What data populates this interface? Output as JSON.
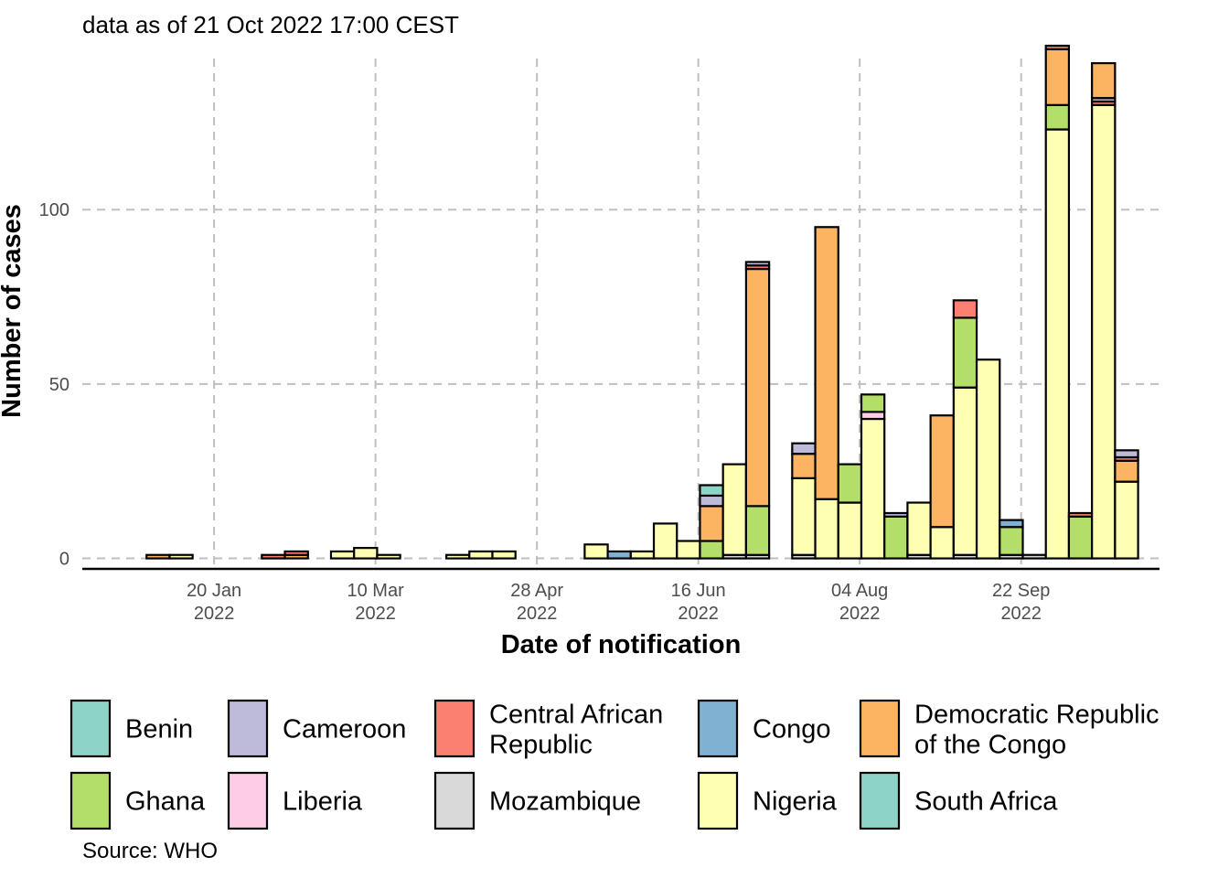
{
  "chart_data": {
    "type": "bar",
    "stacked": true,
    "subtitle": "data as of 21 Oct 2022 17:00 CEST",
    "xlabel": "Date of notification",
    "ylabel": "Number of cases",
    "caption": "Source: WHO",
    "ylim": [
      -3,
      147
    ],
    "y_ticks": [
      0,
      50,
      100
    ],
    "x_range": [
      "2021-12-11",
      "2022-11-03"
    ],
    "x_ticks": [
      {
        "date": "2022-01-20",
        "label": [
          "20 Jan",
          "2022"
        ]
      },
      {
        "date": "2022-03-10",
        "label": [
          "10 Mar",
          "2022"
        ]
      },
      {
        "date": "2022-04-28",
        "label": [
          "28 Apr",
          "2022"
        ]
      },
      {
        "date": "2022-06-16",
        "label": [
          "16 Jun",
          "2022"
        ]
      },
      {
        "date": "2022-08-04",
        "label": [
          "04 Aug",
          "2022"
        ]
      },
      {
        "date": "2022-09-22",
        "label": [
          "22 Sep",
          "2022"
        ]
      }
    ],
    "grid": true,
    "legend_position": "bottom",
    "series": [
      {
        "name": "Benin",
        "color": "#8DD3C7"
      },
      {
        "name": "Cameroon",
        "color": "#BEBADA"
      },
      {
        "name": "Central African Republic",
        "color": "#FB8072"
      },
      {
        "name": "Congo",
        "color": "#80B1D3"
      },
      {
        "name": "Democratic Republic of the Congo",
        "color": "#FDB462"
      },
      {
        "name": "Ghana",
        "color": "#B3DE69"
      },
      {
        "name": "Liberia",
        "color": "#FCCDE5"
      },
      {
        "name": "Mozambique",
        "color": "#D9D9D9"
      },
      {
        "name": "Nigeria",
        "color": "#FFFFB3"
      },
      {
        "name": "South Africa",
        "color": "#8DD3C7"
      }
    ],
    "bars": [
      {
        "date": "2022-01-03",
        "segments": [
          [
            "Democratic Republic of the Congo",
            1
          ]
        ]
      },
      {
        "date": "2022-01-10",
        "segments": [
          [
            "Nigeria",
            1
          ]
        ]
      },
      {
        "date": "2022-02-07",
        "segments": [
          [
            "Central African Republic",
            1
          ]
        ]
      },
      {
        "date": "2022-02-14",
        "segments": [
          [
            "Democratic Republic of the Congo",
            1
          ],
          [
            "Central African Republic",
            1
          ]
        ]
      },
      {
        "date": "2022-02-28",
        "segments": [
          [
            "Nigeria",
            2
          ]
        ]
      },
      {
        "date": "2022-03-07",
        "segments": [
          [
            "Nigeria",
            3
          ]
        ]
      },
      {
        "date": "2022-03-14",
        "segments": [
          [
            "Nigeria",
            1
          ]
        ]
      },
      {
        "date": "2022-04-04",
        "segments": [
          [
            "Nigeria",
            1
          ]
        ]
      },
      {
        "date": "2022-04-11",
        "segments": [
          [
            "Nigeria",
            2
          ]
        ]
      },
      {
        "date": "2022-04-18",
        "segments": [
          [
            "Nigeria",
            2
          ]
        ]
      },
      {
        "date": "2022-05-16",
        "segments": [
          [
            "Nigeria",
            4
          ]
        ]
      },
      {
        "date": "2022-05-23",
        "segments": [
          [
            "Congo",
            2
          ]
        ]
      },
      {
        "date": "2022-05-30",
        "segments": [
          [
            "Nigeria",
            2
          ]
        ]
      },
      {
        "date": "2022-06-06",
        "segments": [
          [
            "Nigeria",
            10
          ]
        ]
      },
      {
        "date": "2022-06-13",
        "segments": [
          [
            "Nigeria",
            5
          ]
        ]
      },
      {
        "date": "2022-06-20",
        "segments": [
          [
            "Ghana",
            5
          ],
          [
            "Democratic Republic of the Congo",
            10
          ],
          [
            "Cameroon",
            3
          ],
          [
            "Benin",
            3
          ]
        ]
      },
      {
        "date": "2022-06-27",
        "segments": [
          [
            "Mozambique",
            1
          ],
          [
            "Nigeria",
            26
          ]
        ]
      },
      {
        "date": "2022-07-04",
        "segments": [
          [
            "Mozambique",
            1
          ],
          [
            "Ghana",
            14
          ],
          [
            "Democratic Republic of the Congo",
            68
          ],
          [
            "Central African Republic",
            1
          ],
          [
            "Cameroon",
            1
          ]
        ]
      },
      {
        "date": "2022-07-18",
        "segments": [
          [
            "Mozambique",
            1
          ],
          [
            "Nigeria",
            22
          ],
          [
            "Democratic Republic of the Congo",
            7
          ],
          [
            "Cameroon",
            3
          ]
        ]
      },
      {
        "date": "2022-07-25",
        "segments": [
          [
            "Nigeria",
            17
          ],
          [
            "Democratic Republic of the Congo",
            78
          ]
        ]
      },
      {
        "date": "2022-08-01",
        "segments": [
          [
            "Nigeria",
            16
          ],
          [
            "Ghana",
            11
          ]
        ]
      },
      {
        "date": "2022-08-08",
        "segments": [
          [
            "Nigeria",
            40
          ],
          [
            "Liberia",
            2
          ],
          [
            "Ghana",
            5
          ]
        ]
      },
      {
        "date": "2022-08-15",
        "segments": [
          [
            "Ghana",
            12
          ],
          [
            "Cameroon",
            1
          ]
        ]
      },
      {
        "date": "2022-08-22",
        "segments": [
          [
            "Mozambique",
            1
          ],
          [
            "Nigeria",
            15
          ]
        ]
      },
      {
        "date": "2022-08-29",
        "segments": [
          [
            "Nigeria",
            9
          ],
          [
            "Democratic Republic of the Congo",
            32
          ]
        ]
      },
      {
        "date": "2022-09-05",
        "segments": [
          [
            "Mozambique",
            1
          ],
          [
            "Nigeria",
            48
          ],
          [
            "Ghana",
            20
          ],
          [
            "Central African Republic",
            5
          ]
        ]
      },
      {
        "date": "2022-09-12",
        "segments": [
          [
            "Nigeria",
            57
          ]
        ]
      },
      {
        "date": "2022-09-19",
        "segments": [
          [
            "Mozambique",
            1
          ],
          [
            "Ghana",
            8
          ],
          [
            "Congo",
            2
          ]
        ]
      },
      {
        "date": "2022-09-26",
        "segments": [
          [
            "Mozambique",
            1
          ]
        ]
      },
      {
        "date": "2022-10-03",
        "segments": [
          [
            "Nigeria",
            123
          ],
          [
            "Ghana",
            7
          ],
          [
            "Democratic Republic of the Congo",
            16
          ],
          [
            "Central African Republic",
            1
          ]
        ]
      },
      {
        "date": "2022-10-10",
        "segments": [
          [
            "Ghana",
            12
          ],
          [
            "Central African Republic",
            1
          ]
        ]
      },
      {
        "date": "2022-10-17",
        "segments": [
          [
            "Nigeria",
            130
          ],
          [
            "Central African Republic",
            1
          ],
          [
            "Cameroon",
            1
          ],
          [
            "Democratic Republic of the Congo",
            10
          ]
        ]
      },
      {
        "date": "2022-10-24",
        "segments": [
          [
            "Nigeria",
            22
          ],
          [
            "Democratic Republic of the Congo",
            6
          ],
          [
            "Central African Republic",
            1
          ],
          [
            "Cameroon",
            2
          ]
        ]
      }
    ]
  }
}
